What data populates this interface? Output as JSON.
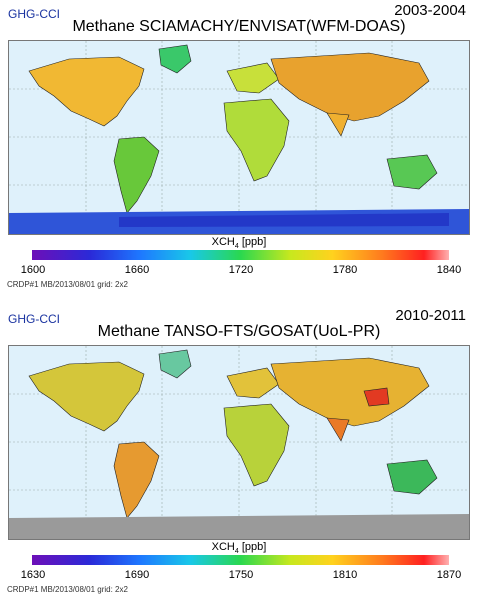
{
  "panels": [
    {
      "brand": "GHG-CCI",
      "period": "2003-2004",
      "title": "Methane SCIAMACHY/ENVISAT(WFM-DOAS)",
      "colorbar_label": "XCH",
      "colorbar_sub": "4",
      "colorbar_unit": " [ppb]",
      "ticks": [
        "1600",
        "1660",
        "1720",
        "1780",
        "1840"
      ],
      "credit": "CRDP#1 MB/2013/08/01 grid: 2x2"
    },
    {
      "brand": "GHG-CCI",
      "period": "2010-2011",
      "title": "Methane TANSO-FTS/GOSAT(UoL-PR)",
      "colorbar_label": "XCH",
      "colorbar_sub": "4",
      "colorbar_unit": " [ppb]",
      "ticks": [
        "1630",
        "1690",
        "1750",
        "1810",
        "1870"
      ],
      "credit": "CRDP#1 MB/2013/08/01 grid: 2x2"
    }
  ],
  "colors": {
    "ocean": "#dff1fb",
    "land_mid": "#9ad63a",
    "land_high": "#f39a2a",
    "land_low": "#2f6bd8",
    "land_nodata": "#9a9a9a"
  }
}
